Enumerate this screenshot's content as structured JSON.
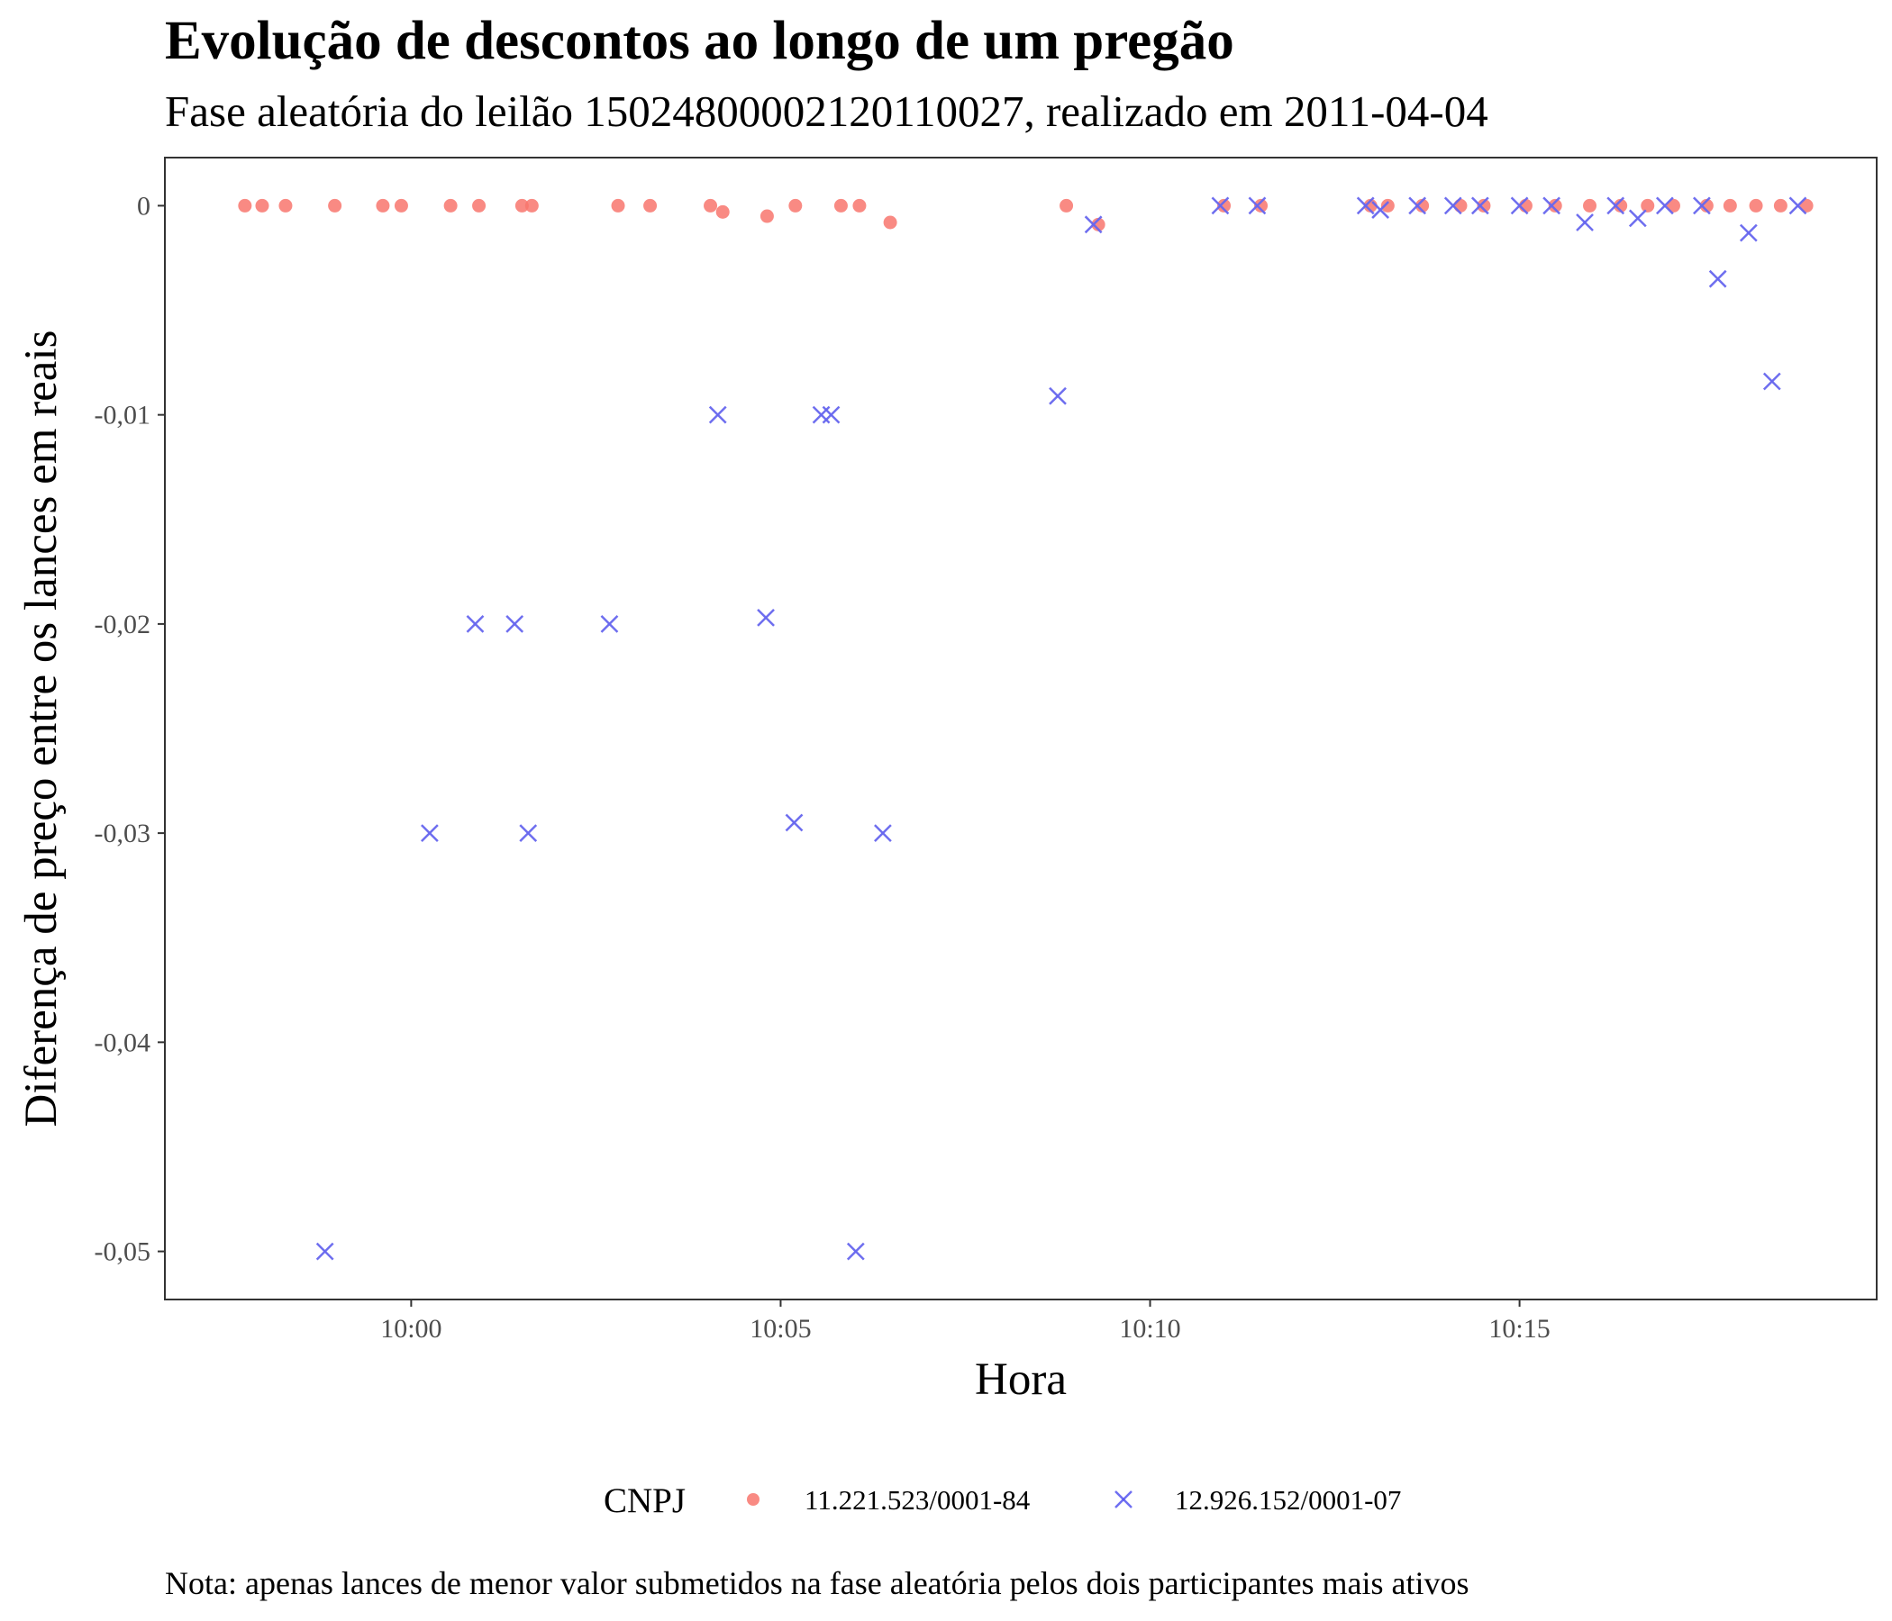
{
  "chart_data": {
    "type": "scatter",
    "title": "Evolução de descontos ao longo de um pregão",
    "subtitle": "Fase aleatória do leilão 15024800002120110027, realizado em 2011-04-04",
    "xlabel": "Hora",
    "ylabel": "Diferença de preço entre os lances em reais",
    "caption": "Nota: apenas lances de menor valor submetidos na fase aleatória pelos dois participantes mais ativos",
    "xlim": [
      "09:56:40",
      "10:19:50"
    ],
    "ylim": [
      -0.0523,
      0.0023
    ],
    "x_ticks": [
      "10:00",
      "10:05",
      "10:10",
      "10:15"
    ],
    "y_ticks": [
      0,
      -0.01,
      -0.02,
      -0.03,
      -0.04,
      -0.05
    ],
    "y_tick_labels": [
      "0",
      "-0,01",
      "-0,02",
      "-0,03",
      "-0,04",
      "-0,05"
    ],
    "grid": false,
    "legend": {
      "title": "CNPJ",
      "position": "bottom"
    },
    "series": [
      {
        "name": "11.221.523/0001-84",
        "color": "#F8766D",
        "marker": "circle",
        "points": [
          {
            "x": "09:57:45",
            "y": 0
          },
          {
            "x": "09:57:59",
            "y": 0
          },
          {
            "x": "09:58:18",
            "y": 0
          },
          {
            "x": "09:58:58",
            "y": 0
          },
          {
            "x": "09:59:37",
            "y": 0
          },
          {
            "x": "09:59:52",
            "y": 0
          },
          {
            "x": "10:00:32",
            "y": 0
          },
          {
            "x": "10:00:55",
            "y": 0
          },
          {
            "x": "10:01:30",
            "y": 0
          },
          {
            "x": "10:01:38",
            "y": 0
          },
          {
            "x": "10:02:48",
            "y": 0
          },
          {
            "x": "10:03:14",
            "y": 0
          },
          {
            "x": "10:04:03",
            "y": 0
          },
          {
            "x": "10:04:13",
            "y": -0.0003
          },
          {
            "x": "10:04:49",
            "y": -0.0005
          },
          {
            "x": "10:05:12",
            "y": 0
          },
          {
            "x": "10:05:49",
            "y": 0
          },
          {
            "x": "10:06:04",
            "y": 0
          },
          {
            "x": "10:06:29",
            "y": -0.0008
          },
          {
            "x": "10:08:52",
            "y": 0
          },
          {
            "x": "10:09:18",
            "y": -0.0009
          },
          {
            "x": "10:11:00",
            "y": 0
          },
          {
            "x": "10:11:30",
            "y": 0
          },
          {
            "x": "10:12:59",
            "y": 0
          },
          {
            "x": "10:13:13",
            "y": 0
          },
          {
            "x": "10:13:41",
            "y": 0
          },
          {
            "x": "10:14:12",
            "y": 0
          },
          {
            "x": "10:14:31",
            "y": 0
          },
          {
            "x": "10:15:05",
            "y": 0
          },
          {
            "x": "10:15:29",
            "y": 0
          },
          {
            "x": "10:15:57",
            "y": 0
          },
          {
            "x": "10:16:22",
            "y": 0
          },
          {
            "x": "10:16:44",
            "y": 0
          },
          {
            "x": "10:17:05",
            "y": 0
          },
          {
            "x": "10:17:32",
            "y": 0
          },
          {
            "x": "10:17:51",
            "y": 0
          },
          {
            "x": "10:18:12",
            "y": 0
          },
          {
            "x": "10:18:32",
            "y": 0
          },
          {
            "x": "10:18:53",
            "y": 0
          }
        ]
      },
      {
        "name": "12.926.152/0001-07",
        "color": "#6666EE",
        "marker": "cross",
        "points": [
          {
            "x": "09:58:50",
            "y": -0.05
          },
          {
            "x": "10:00:15",
            "y": -0.03
          },
          {
            "x": "10:00:52",
            "y": -0.02
          },
          {
            "x": "10:01:24",
            "y": -0.02
          },
          {
            "x": "10:01:35",
            "y": -0.03
          },
          {
            "x": "10:02:41",
            "y": -0.02
          },
          {
            "x": "10:04:09",
            "y": -0.01
          },
          {
            "x": "10:04:48",
            "y": -0.0197
          },
          {
            "x": "10:05:11",
            "y": -0.0295
          },
          {
            "x": "10:05:33",
            "y": -0.01
          },
          {
            "x": "10:05:41",
            "y": -0.01
          },
          {
            "x": "10:06:01",
            "y": -0.05
          },
          {
            "x": "10:06:23",
            "y": -0.03
          },
          {
            "x": "10:08:45",
            "y": -0.0091
          },
          {
            "x": "10:09:14",
            "y": -0.0009
          },
          {
            "x": "10:10:57",
            "y": 0
          },
          {
            "x": "10:11:27",
            "y": 0
          },
          {
            "x": "10:12:55",
            "y": 0
          },
          {
            "x": "10:13:07",
            "y": -0.0002
          },
          {
            "x": "10:13:37",
            "y": 0
          },
          {
            "x": "10:14:06",
            "y": 0
          },
          {
            "x": "10:14:28",
            "y": 0
          },
          {
            "x": "10:15:00",
            "y": 0
          },
          {
            "x": "10:15:26",
            "y": 0
          },
          {
            "x": "10:15:53",
            "y": -0.0008
          },
          {
            "x": "10:16:18",
            "y": 0
          },
          {
            "x": "10:16:36",
            "y": -0.0006
          },
          {
            "x": "10:16:58",
            "y": 0
          },
          {
            "x": "10:17:28",
            "y": 0
          },
          {
            "x": "10:17:41",
            "y": -0.0035
          },
          {
            "x": "10:18:06",
            "y": -0.0013
          },
          {
            "x": "10:18:25",
            "y": -0.0084
          },
          {
            "x": "10:18:46",
            "y": 0
          }
        ]
      }
    ]
  }
}
